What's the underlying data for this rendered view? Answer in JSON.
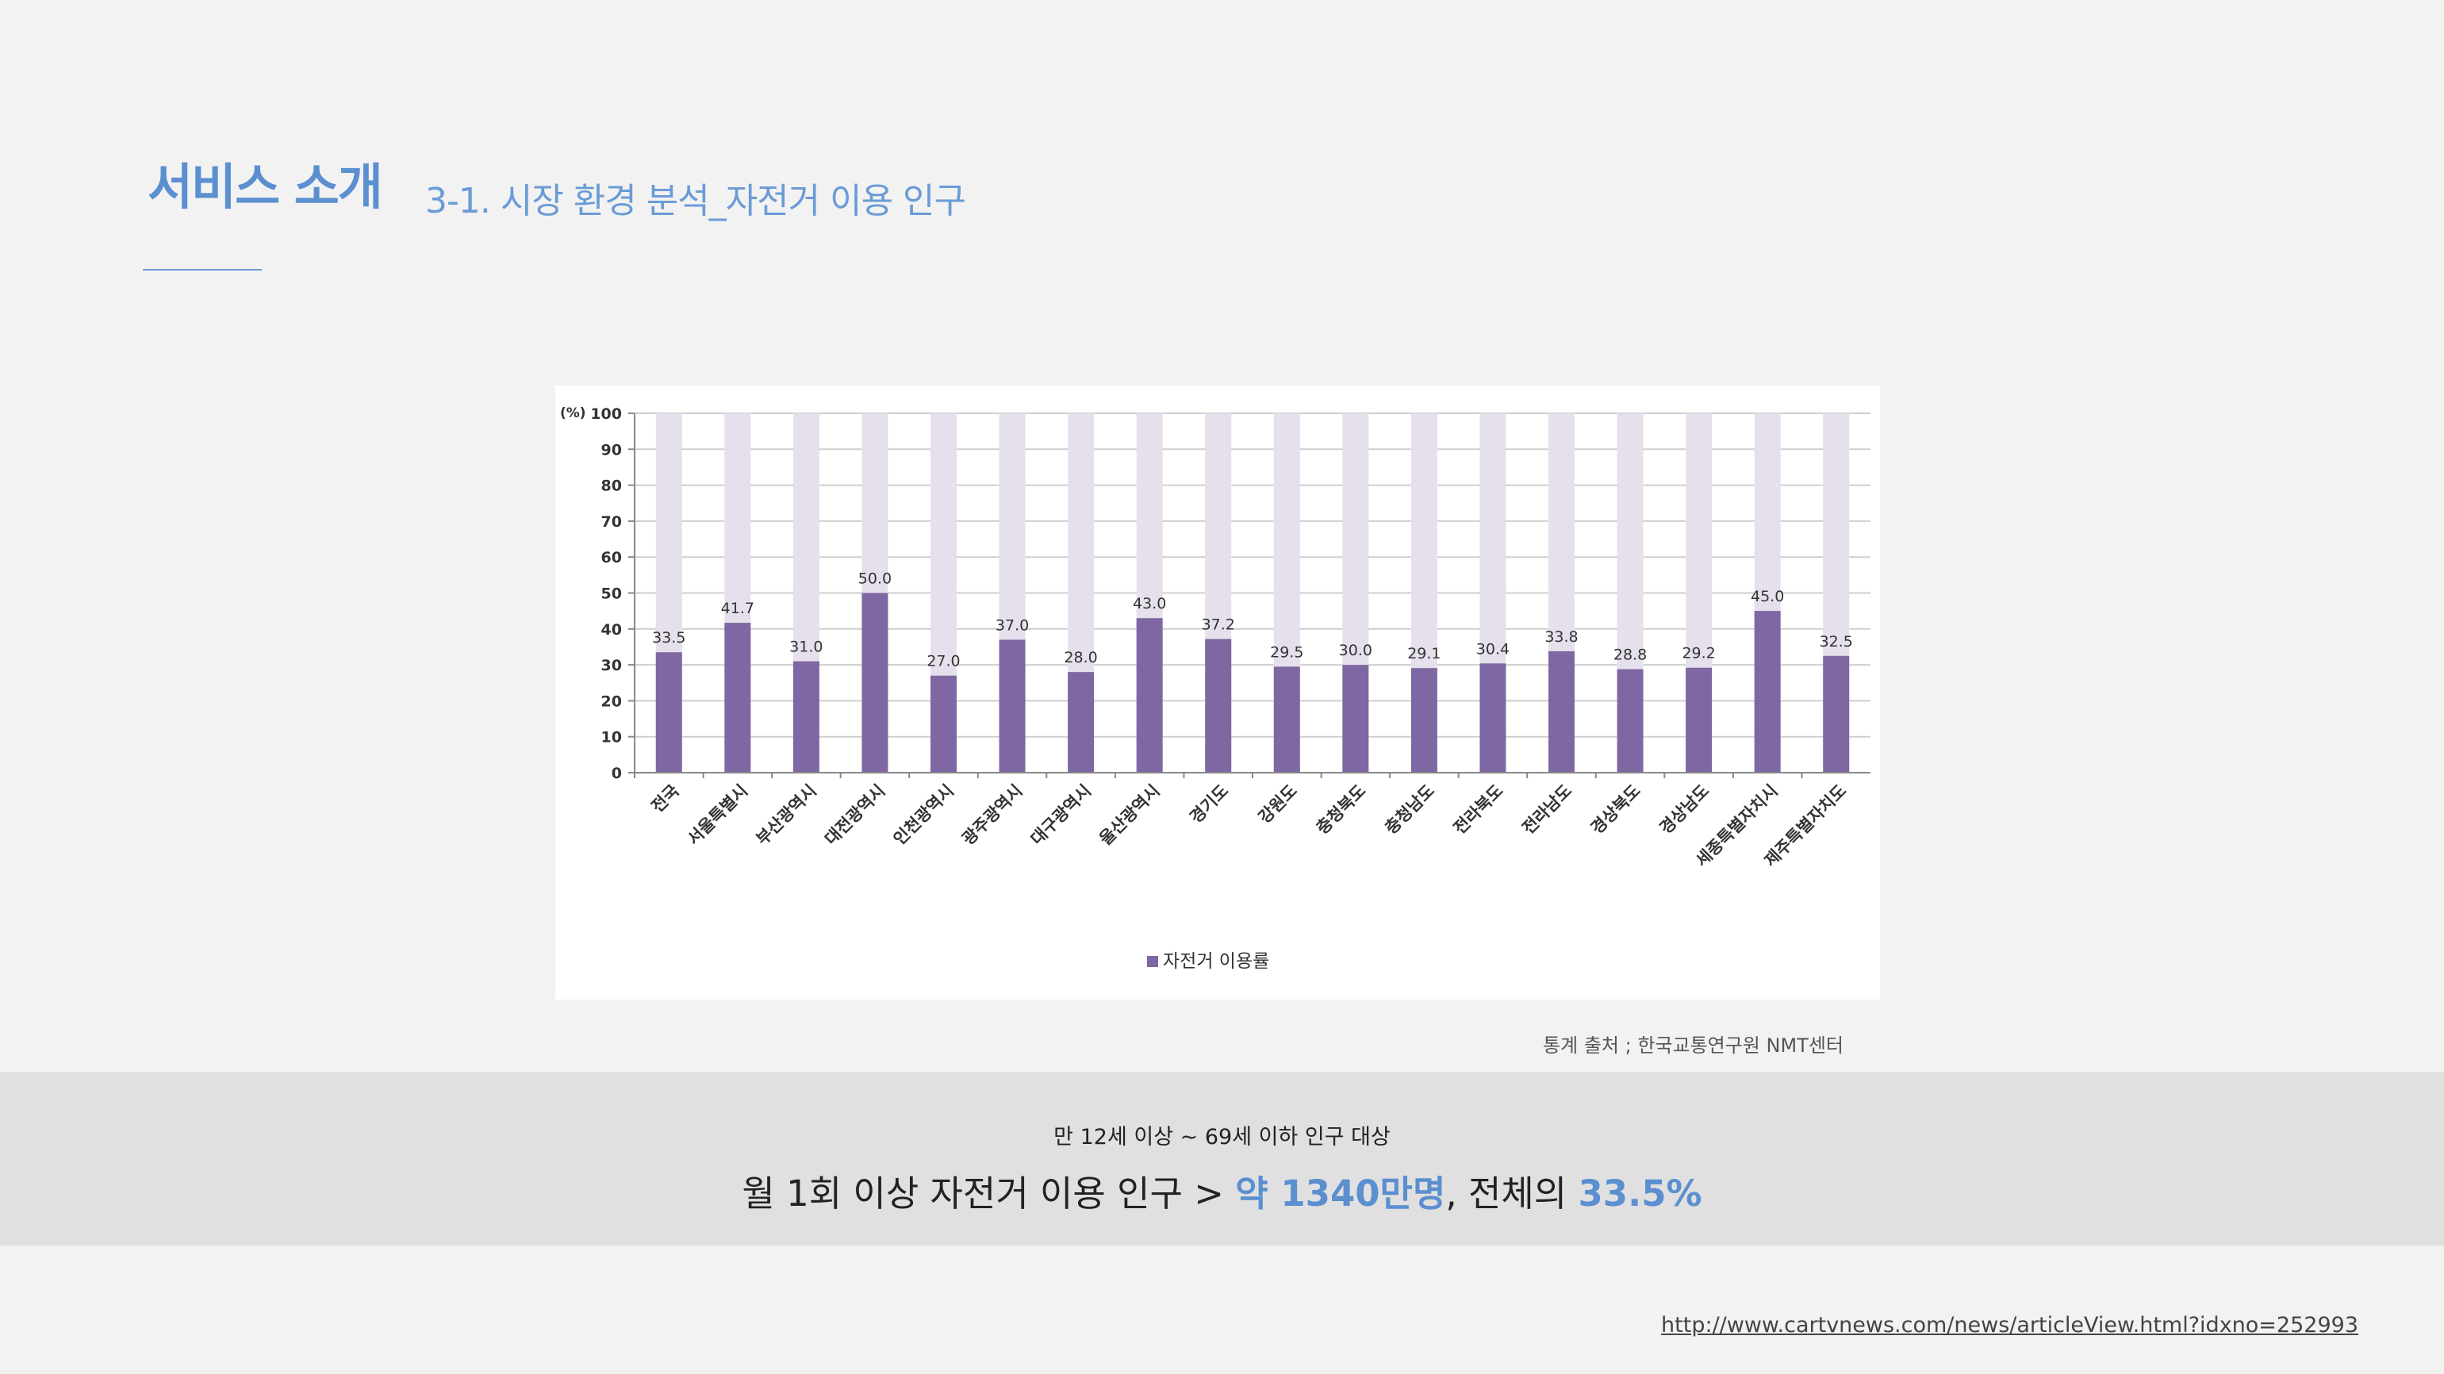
{
  "header": {
    "title": "서비스 소개",
    "subtitle": "3-1. 시장 환경 분석_자전거 이용 인구"
  },
  "colors": {
    "accent": "#5b8fd0",
    "bar": "#7e67a2",
    "bar_background": "#e5e0ec"
  },
  "chart_data": {
    "type": "bar",
    "categories": [
      "전국",
      "서울특별시",
      "부산광역시",
      "대전광역시",
      "인천광역시",
      "광주광역시",
      "대구광역시",
      "울산광역시",
      "경기도",
      "강원도",
      "충청북도",
      "충청남도",
      "전라북도",
      "전라남도",
      "경상북도",
      "경상남도",
      "세종특별자치시",
      "제주특별자치도"
    ],
    "series": [
      {
        "name": "자전거 이용률",
        "values": [
          33.5,
          41.7,
          31.0,
          50.0,
          27.0,
          37.0,
          28.0,
          43.0,
          37.2,
          29.5,
          30.0,
          29.1,
          30.4,
          33.8,
          28.8,
          29.2,
          45.0,
          32.5
        ],
        "labels": [
          "33.5",
          "41.7",
          "31.0",
          "50.0",
          "27.0",
          "37.0",
          "28.0",
          "43.0",
          "37.2",
          "29.5",
          "30.0",
          "29.1",
          "30.4",
          "33.8",
          "28.8",
          "29.2",
          "45.0",
          "32.5"
        ]
      }
    ],
    "y_unit": "(%)",
    "ylim": [
      0,
      100
    ],
    "yticks": [
      0,
      10,
      20,
      30,
      40,
      50,
      60,
      70,
      80,
      90,
      100
    ],
    "background_bars_to": 100,
    "grid": true,
    "legend": "bottom"
  },
  "source_note": "통계 출처 ; 한국교통연구원 NMT센터",
  "summary": {
    "caption": "만 12세 이상 ~ 69세 이하 인구 대상",
    "headline_prefix": "월 1회 이상 자전거 이용 인구 > ",
    "headline_highlight_1": "약 1340만명",
    "headline_middle": ", 전체의 ",
    "headline_highlight_2": "33.5%"
  },
  "source_link": "http://www.cartvnews.com/news/articleView.html?idxno=252993"
}
